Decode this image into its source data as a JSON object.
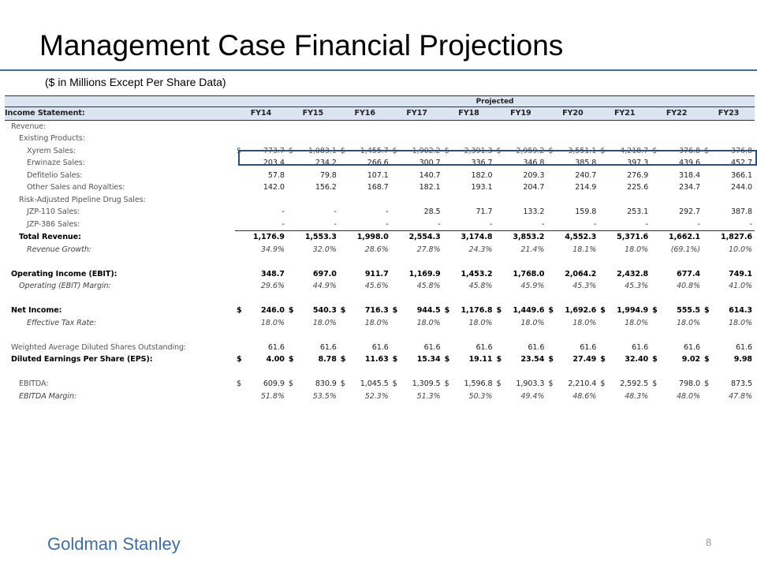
{
  "title": "Management Case Financial Projections",
  "subtitle": "($ in Millions Except Per Share Data)",
  "table": {
    "group_header": "Projected",
    "section_label": "Income Statement:",
    "years": [
      "FY14",
      "FY15",
      "FY16",
      "FY17",
      "FY18",
      "FY19",
      "FY20",
      "FY21",
      "FY22",
      "FY23"
    ],
    "rows": [
      {
        "label": "Revenue:",
        "style": "i1 gray",
        "values": []
      },
      {
        "label": "Existing Products:",
        "style": "i2 gray",
        "values": []
      },
      {
        "label": "Xyrem Sales:",
        "style": "i3 gray",
        "row": "hl",
        "currency": true,
        "values": [
          "773.7",
          "1,083.1",
          "1,455.7",
          "1,902.2",
          "2,391.3",
          "2,959.2",
          "3,551.1",
          "4,218.7",
          "376.8",
          "376.8"
        ]
      },
      {
        "label": "Erwinaze Sales:",
        "style": "i3 gray",
        "values": [
          "203.4",
          "234.2",
          "266.6",
          "300.7",
          "336.7",
          "346.8",
          "385.8",
          "397.3",
          "439.6",
          "452.7"
        ]
      },
      {
        "label": "Defitelio Sales:",
        "style": "i3 gray",
        "values": [
          "57.8",
          "79.8",
          "107.1",
          "140.7",
          "182.0",
          "209.3",
          "240.7",
          "276.9",
          "318.4",
          "366.1"
        ]
      },
      {
        "label": "Other Sales and Royalties:",
        "style": "i3 gray",
        "values": [
          "142.0",
          "156.2",
          "168.7",
          "182.1",
          "193.1",
          "204.7",
          "214.9",
          "225.6",
          "234.7",
          "244.0"
        ]
      },
      {
        "label": "Risk-Adjusted Pipeline Drug Sales:",
        "style": "i2 gray",
        "values": []
      },
      {
        "label": "JZP-110 Sales:",
        "style": "i3 gray",
        "values": [
          "-",
          "-",
          "-",
          "28.5",
          "71.7",
          "133.2",
          "159.8",
          "253.1",
          "292.7",
          "387.8"
        ]
      },
      {
        "label": "JZP-386 Sales:",
        "style": "i3 gray",
        "values": [
          "-",
          "-",
          "-",
          "-",
          "-",
          "-",
          "-",
          "-",
          "-",
          "-"
        ]
      },
      {
        "label": "Total Revenue:",
        "style": "i2 bold",
        "row": "topline",
        "values": [
          "1,176.9",
          "1,553.3",
          "1,998.0",
          "2,554.3",
          "3,174.8",
          "3,853.2",
          "4,552.3",
          "5,371.6",
          "1,662.1",
          "1,827.6"
        ]
      },
      {
        "label": "Revenue Growth:",
        "style": "i3 ital",
        "vstyle": "ital",
        "values": [
          "34.9%",
          "32.0%",
          "28.6%",
          "27.8%",
          "24.3%",
          "21.4%",
          "18.1%",
          "18.0%",
          "(69.1%)",
          "10.0%"
        ]
      },
      {
        "label": "",
        "style": "",
        "values": []
      },
      {
        "label": "Operating Income (EBIT):",
        "style": "i1 bold",
        "values": [
          "348.7",
          "697.0",
          "911.7",
          "1,169.9",
          "1,453.2",
          "1,768.0",
          "2,064.2",
          "2,432.8",
          "677.4",
          "749.1"
        ]
      },
      {
        "label": "Operating (EBIT) Margin:",
        "style": "i2 ital",
        "vstyle": "ital",
        "values": [
          "29.6%",
          "44.9%",
          "45.6%",
          "45.8%",
          "45.8%",
          "45.9%",
          "45.3%",
          "45.3%",
          "40.8%",
          "41.0%"
        ]
      },
      {
        "label": "",
        "style": "",
        "values": []
      },
      {
        "label": "Net Income:",
        "style": "i1 bold",
        "currency": true,
        "values": [
          "246.0",
          "540.3",
          "716.3",
          "944.5",
          "1,176.8",
          "1,449.6",
          "1,692.6",
          "1,994.9",
          "555.5",
          "614.3"
        ]
      },
      {
        "label": "Effective Tax Rate:",
        "style": "i3 ital",
        "vstyle": "ital",
        "values": [
          "18.0%",
          "18.0%",
          "18.0%",
          "18.0%",
          "18.0%",
          "18.0%",
          "18.0%",
          "18.0%",
          "18.0%",
          "18.0%"
        ]
      },
      {
        "label": "",
        "style": "",
        "values": []
      },
      {
        "label": "Weighted Average Diluted Shares Outstanding:",
        "style": "i1 gray",
        "values": [
          "61.6",
          "61.6",
          "61.6",
          "61.6",
          "61.6",
          "61.6",
          "61.6",
          "61.6",
          "61.6",
          "61.6"
        ]
      },
      {
        "label": "Diluted Earnings Per Share (EPS):",
        "style": "i1 bold",
        "currency": true,
        "values": [
          "4.00",
          "8.78",
          "11.63",
          "15.34",
          "19.11",
          "23.54",
          "27.49",
          "32.40",
          "9.02",
          "9.98"
        ]
      },
      {
        "label": "",
        "style": "",
        "values": []
      },
      {
        "label": "EBITDA:",
        "style": "i2 gray",
        "currency": true,
        "values": [
          "609.9",
          "830.9",
          "1,045.5",
          "1,309.5",
          "1,596.8",
          "1,903.3",
          "2,210.4",
          "2,592.5",
          "798.0",
          "873.5"
        ]
      },
      {
        "label": "EBITDA Margin:",
        "style": "i2 ital",
        "vstyle": "ital",
        "values": [
          "51.8%",
          "53.5%",
          "52.3%",
          "51.3%",
          "50.3%",
          "49.4%",
          "48.6%",
          "48.3%",
          "48.0%",
          "47.8%"
        ]
      }
    ],
    "currency_symbol": "$"
  },
  "footer": {
    "brand": "Goldman Stanley",
    "page_number": "8"
  },
  "colors": {
    "accent": "#3c6ea5",
    "header_fill": "#dbe5f1",
    "highlight_border": "#2c4f80"
  }
}
